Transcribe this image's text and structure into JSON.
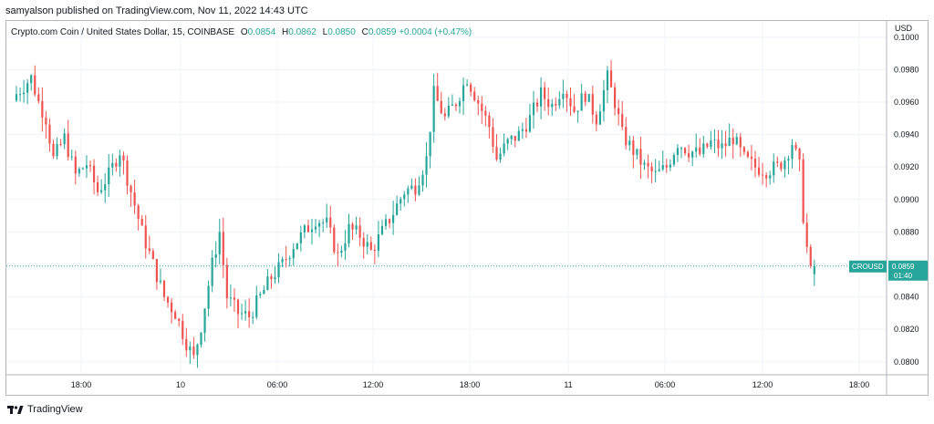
{
  "publisher_line": "samyalson published on TradingView.com, Nov 11, 2022 14:43 UTC",
  "legend": {
    "symbol": "Crypto.com Coin / United States Dollar, 15, COINBASE",
    "o_label": "O",
    "o": "0.0854",
    "h_label": "H",
    "h": "0.0862",
    "l_label": "L",
    "l": "0.0850",
    "c_label": "C",
    "c": "0.0859",
    "change": "+0.0004 (+0.47%)"
  },
  "currency": "USD",
  "last_price_badge": {
    "ticker": "CROUSD",
    "price": "0.0859",
    "countdown": "01:40"
  },
  "footer": {
    "brand": "TradingView"
  },
  "colors": {
    "up": "#26a69a",
    "down": "#ef5350",
    "grid": "#f0f3fa"
  },
  "chart_data": {
    "type": "candlestick",
    "interval": "15",
    "x_tick_labels": [
      "18:00",
      "10",
      "06:00",
      "12:00",
      "18:00",
      "11",
      "06:00",
      "12:00",
      "18:00"
    ],
    "y_tick_labels": [
      "0.0800",
      "0.0820",
      "0.0840",
      "0.0860",
      "0.0880",
      "0.0900",
      "0.0920",
      "0.0940",
      "0.0960",
      "0.0980",
      "0.1000"
    ],
    "ylim": [
      0.0792,
      0.101
    ],
    "last_price": 0.0859,
    "grid": true,
    "close_path": [
      [
        0,
        0.0965
      ],
      [
        4,
        0.0975
      ],
      [
        6,
        0.096
      ],
      [
        8,
        0.095
      ],
      [
        10,
        0.0925
      ],
      [
        13,
        0.0938
      ],
      [
        16,
        0.0915
      ],
      [
        19,
        0.0922
      ],
      [
        22,
        0.0905
      ],
      [
        25,
        0.0915
      ],
      [
        28,
        0.093
      ],
      [
        31,
        0.0905
      ],
      [
        34,
        0.088
      ],
      [
        37,
        0.086
      ],
      [
        40,
        0.084
      ],
      [
        43,
        0.083
      ],
      [
        46,
        0.0812
      ],
      [
        48,
        0.0802
      ],
      [
        50,
        0.0822
      ],
      [
        53,
        0.086
      ],
      [
        55,
        0.088
      ],
      [
        57,
        0.084
      ],
      [
        60,
        0.083
      ],
      [
        63,
        0.0828
      ],
      [
        66,
        0.084
      ],
      [
        69,
        0.0852
      ],
      [
        72,
        0.086
      ],
      [
        75,
        0.0872
      ],
      [
        78,
        0.088
      ],
      [
        81,
        0.0888
      ],
      [
        84,
        0.0885
      ],
      [
        87,
        0.0865
      ],
      [
        90,
        0.0882
      ],
      [
        93,
        0.0878
      ],
      [
        96,
        0.0868
      ],
      [
        99,
        0.088
      ],
      [
        102,
        0.0892
      ],
      [
        105,
        0.0905
      ],
      [
        108,
        0.0908
      ],
      [
        111,
        0.0925
      ],
      [
        113,
        0.0965
      ],
      [
        116,
        0.095
      ],
      [
        119,
        0.096
      ],
      [
        122,
        0.0975
      ],
      [
        125,
        0.096
      ],
      [
        128,
        0.0945
      ],
      [
        130,
        0.0925
      ],
      [
        133,
        0.0935
      ],
      [
        136,
        0.094
      ],
      [
        139,
        0.095
      ],
      [
        142,
        0.0965
      ],
      [
        145,
        0.0958
      ],
      [
        148,
        0.097
      ],
      [
        151,
        0.0955
      ],
      [
        154,
        0.0965
      ],
      [
        157,
        0.095
      ],
      [
        160,
        0.0975
      ],
      [
        162,
        0.096
      ],
      [
        164,
        0.094
      ],
      [
        167,
        0.093
      ],
      [
        170,
        0.092
      ],
      [
        173,
        0.0915
      ],
      [
        176,
        0.092
      ],
      [
        179,
        0.0935
      ],
      [
        182,
        0.093
      ],
      [
        185,
        0.0928
      ],
      [
        188,
        0.0935
      ],
      [
        191,
        0.0932
      ],
      [
        194,
        0.0938
      ],
      [
        197,
        0.0925
      ],
      [
        200,
        0.092
      ],
      [
        203,
        0.0918
      ],
      [
        206,
        0.092
      ],
      [
        208,
        0.0925
      ],
      [
        210,
        0.0935
      ],
      [
        212,
        0.092
      ],
      [
        213,
        0.089
      ],
      [
        214,
        0.087
      ],
      [
        215,
        0.0855
      ],
      [
        216,
        0.0859
      ]
    ]
  }
}
